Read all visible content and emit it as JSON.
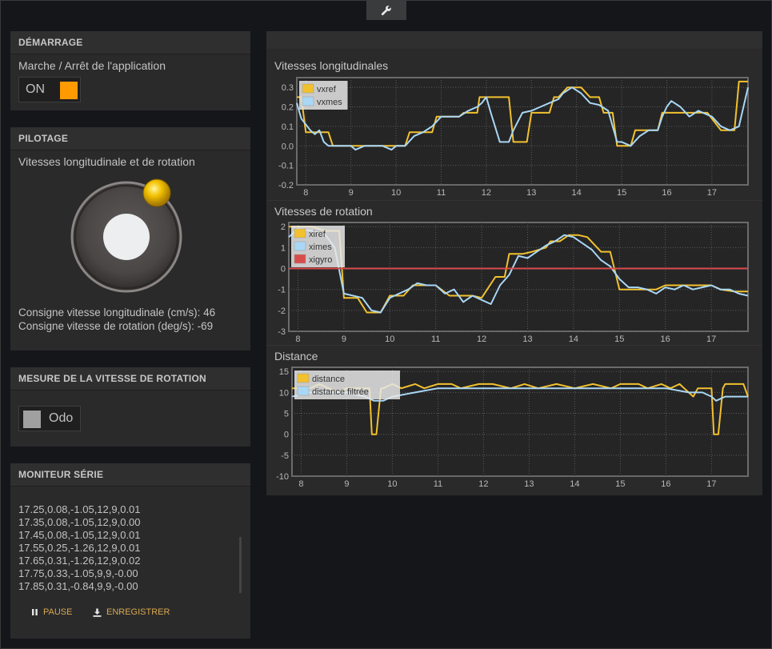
{
  "toolbar": {
    "settings_icon": "wrench-icon"
  },
  "demarrage": {
    "title": "DÉMARRAGE",
    "label": "Marche / Arrêt de l'application",
    "toggle_label": "ON",
    "toggle_color": "#ff9a00"
  },
  "pilotage": {
    "title": "PILOTAGE",
    "label": "Vitesses longitudinale et de rotation",
    "consigne_long": "Consigne vitesse longitudinale (cm/s): 46",
    "consigne_rot": "Consigne vitesse de rotation (deg/s): -69"
  },
  "mesure": {
    "title": "MESURE DE LA VITESSE DE ROTATION",
    "toggle_label": "Odo",
    "toggle_color": "#a0a0a0"
  },
  "moniteur": {
    "title": "MONITEUR SÉRIE",
    "lines": [
      "17.25,0.08,-1.05,12,9,0.01",
      "17.35,0.08,-1.05,12,9,0.00",
      "17.45,0.08,-1.05,12,9,0.01",
      "17.55,0.25,-1.26,12,9,0.01",
      "17.65,0.31,-1.26,12,9,0.02",
      "17.75,0.33,-1.05,9,9,-0.00",
      "17.85,0.31,-0.84,9,9,-0.00"
    ],
    "pause_label": "PAUSE",
    "save_label": "ENREGISTRER"
  },
  "chart_data": [
    {
      "type": "line",
      "title": "Vitesses longitudinales",
      "xlim": [
        7.8,
        17.8
      ],
      "ylim": [
        -0.2,
        0.35
      ],
      "xticks": [
        8,
        9,
        10,
        11,
        12,
        13,
        14,
        15,
        16,
        17
      ],
      "yticks": [
        -0.2,
        -0.1,
        0.0,
        0.1,
        0.2,
        0.3
      ],
      "ytick_labels": [
        "-0.2",
        "-0.1",
        "0.0",
        "0.1",
        "0.2",
        "0.3"
      ],
      "legend": "top-left",
      "series": [
        {
          "name": "vxref",
          "color": "#f2c12e",
          "x": [
            7.8,
            7.9,
            8.0,
            8.1,
            8.3,
            8.5,
            8.6,
            9.0,
            9.5,
            10.0,
            10.2,
            10.3,
            10.6,
            10.8,
            10.9,
            11.2,
            11.4,
            11.5,
            11.8,
            11.85,
            12.0,
            12.5,
            12.6,
            12.7,
            12.9,
            13.0,
            13.4,
            13.5,
            13.6,
            13.8,
            14.0,
            14.1,
            14.3,
            14.5,
            14.6,
            14.8,
            14.9,
            15.2,
            15.3,
            15.8,
            15.9,
            16.1,
            16.3,
            16.6,
            16.8,
            16.9,
            17.2,
            17.5,
            17.6,
            17.8
          ],
          "y": [
            0.25,
            0.25,
            0.07,
            0.07,
            0.07,
            0.07,
            0.0,
            0.0,
            0.0,
            0.0,
            0.0,
            0.07,
            0.07,
            0.07,
            0.15,
            0.15,
            0.15,
            0.17,
            0.17,
            0.25,
            0.25,
            0.25,
            0.02,
            0.02,
            0.02,
            0.17,
            0.17,
            0.25,
            0.25,
            0.3,
            0.3,
            0.3,
            0.25,
            0.25,
            0.17,
            0.17,
            0.0,
            0.0,
            0.08,
            0.08,
            0.17,
            0.17,
            0.17,
            0.17,
            0.17,
            0.17,
            0.08,
            0.08,
            0.33,
            0.33
          ]
        },
        {
          "name": "vxmes",
          "color": "#a9d7f5",
          "x": [
            7.8,
            7.9,
            8.1,
            8.2,
            8.3,
            8.4,
            8.5,
            8.7,
            9.0,
            9.1,
            9.3,
            9.5,
            9.7,
            9.9,
            10.0,
            10.2,
            10.4,
            10.6,
            10.8,
            11.0,
            11.2,
            11.4,
            11.6,
            11.8,
            11.9,
            12.0,
            12.1,
            12.3,
            12.5,
            12.6,
            12.8,
            13.0,
            13.2,
            13.4,
            13.6,
            13.7,
            13.9,
            14.1,
            14.3,
            14.5,
            14.7,
            14.9,
            15.0,
            15.2,
            15.4,
            15.6,
            15.8,
            15.9,
            16.0,
            16.1,
            16.3,
            16.5,
            16.7,
            16.9,
            17.0,
            17.2,
            17.4,
            17.6,
            17.8
          ],
          "y": [
            0.22,
            0.14,
            0.08,
            0.06,
            0.08,
            0.02,
            0.0,
            0.0,
            0.0,
            -0.02,
            0.0,
            0.0,
            0.0,
            -0.02,
            0.0,
            0.0,
            0.05,
            0.07,
            0.1,
            0.15,
            0.15,
            0.15,
            0.18,
            0.2,
            0.22,
            0.25,
            0.17,
            0.02,
            0.02,
            0.08,
            0.17,
            0.18,
            0.2,
            0.22,
            0.24,
            0.27,
            0.3,
            0.27,
            0.22,
            0.21,
            0.18,
            0.02,
            0.02,
            0.0,
            0.05,
            0.08,
            0.08,
            0.15,
            0.2,
            0.23,
            0.2,
            0.15,
            0.18,
            0.16,
            0.15,
            0.1,
            0.08,
            0.1,
            0.3
          ]
        }
      ]
    },
    {
      "type": "line",
      "title": "Vitesses de rotation",
      "xlim": [
        7.8,
        17.8
      ],
      "ylim": [
        -3,
        2.2
      ],
      "xticks": [
        8,
        9,
        10,
        11,
        12,
        13,
        14,
        15,
        16,
        17
      ],
      "yticks": [
        -3,
        -2,
        -1,
        0,
        1,
        2
      ],
      "ytick_labels": [
        "-3",
        "-2",
        "-1",
        "0",
        "1",
        "2"
      ],
      "legend": "top-left",
      "series": [
        {
          "name": "xiref",
          "color": "#f2c12e",
          "x": [
            7.8,
            8.3,
            8.6,
            8.9,
            9.0,
            9.2,
            9.3,
            9.5,
            9.8,
            10.0,
            10.3,
            10.5,
            10.8,
            11.0,
            11.3,
            11.5,
            11.8,
            12.0,
            12.3,
            12.5,
            12.6,
            12.9,
            13.1,
            13.4,
            13.5,
            13.7,
            13.9,
            14.1,
            14.3,
            14.6,
            14.8,
            15.0,
            15.2,
            15.5,
            15.8,
            16.0,
            16.3,
            16.6,
            16.8,
            17.0,
            17.2,
            17.5,
            17.8
          ],
          "y": [
            2.0,
            2.0,
            1.8,
            1.8,
            -1.4,
            -1.4,
            -1.4,
            -2.1,
            -2.1,
            -1.3,
            -1.3,
            -0.8,
            -0.8,
            -0.8,
            -1.3,
            -1.3,
            -1.3,
            -1.4,
            -0.4,
            -0.4,
            0.7,
            0.7,
            0.8,
            1.0,
            1.3,
            1.3,
            1.6,
            1.6,
            1.5,
            0.8,
            0.8,
            -1.0,
            -1.0,
            -1.0,
            -1.0,
            -0.8,
            -0.8,
            -0.8,
            -0.8,
            -0.8,
            -1.0,
            -1.1,
            -1.1
          ]
        },
        {
          "name": "ximes",
          "color": "#a9d7f5",
          "x": [
            7.8,
            8.0,
            8.3,
            8.6,
            8.8,
            9.0,
            9.2,
            9.4,
            9.6,
            9.8,
            10.0,
            10.2,
            10.4,
            10.6,
            10.8,
            11.0,
            11.2,
            11.4,
            11.6,
            11.8,
            12.0,
            12.2,
            12.4,
            12.6,
            12.8,
            13.0,
            13.2,
            13.4,
            13.6,
            13.8,
            14.0,
            14.2,
            14.4,
            14.6,
            14.8,
            15.0,
            15.2,
            15.4,
            15.6,
            15.8,
            16.0,
            16.2,
            16.4,
            16.6,
            16.8,
            17.0,
            17.2,
            17.4,
            17.6,
            17.8
          ],
          "y": [
            1.5,
            1.9,
            1.8,
            1.6,
            1.0,
            -1.2,
            -1.3,
            -1.4,
            -2.0,
            -2.1,
            -1.4,
            -1.2,
            -1.0,
            -0.7,
            -0.8,
            -0.8,
            -1.2,
            -1.0,
            -1.6,
            -1.3,
            -1.5,
            -1.7,
            -0.8,
            -0.3,
            0.6,
            0.5,
            0.8,
            1.1,
            1.3,
            1.6,
            1.5,
            1.2,
            0.9,
            0.4,
            0.1,
            -0.5,
            -0.9,
            -0.9,
            -1.0,
            -1.2,
            -0.9,
            -1.0,
            -0.8,
            -1.0,
            -0.9,
            -0.8,
            -1.0,
            -1.0,
            -1.2,
            -1.3
          ]
        },
        {
          "name": "xigyro",
          "color": "#d94c4c",
          "x": [
            7.8,
            17.8
          ],
          "y": [
            0.0,
            0.0
          ]
        }
      ]
    },
    {
      "type": "line",
      "title": "Distance",
      "xlim": [
        7.8,
        17.8
      ],
      "ylim": [
        -10,
        16
      ],
      "xticks": [
        8,
        9,
        10,
        11,
        12,
        13,
        14,
        15,
        16,
        17
      ],
      "yticks": [
        -10,
        -5,
        0,
        5,
        10,
        15
      ],
      "ytick_labels": [
        "-10",
        "-5",
        "0",
        "5",
        "10",
        "15"
      ],
      "legend": "top-left",
      "series": [
        {
          "name": "distance",
          "color": "#f2c12e",
          "x": [
            7.8,
            8.2,
            8.4,
            8.6,
            8.8,
            9.0,
            9.3,
            9.5,
            9.55,
            9.65,
            9.75,
            9.8,
            10.0,
            10.2,
            10.5,
            10.7,
            11.0,
            11.3,
            11.5,
            11.9,
            12.2,
            12.6,
            12.9,
            13.2,
            13.6,
            14.0,
            14.4,
            14.8,
            15.0,
            15.4,
            15.6,
            15.9,
            16.1,
            16.3,
            16.4,
            16.6,
            16.7,
            17.0,
            17.05,
            17.15,
            17.25,
            17.3,
            17.7,
            17.8
          ],
          "y": [
            11,
            11,
            12,
            11,
            10,
            11,
            11,
            11,
            0,
            0,
            11,
            11,
            12,
            11,
            12,
            11,
            12,
            12,
            11,
            12,
            12,
            11,
            12,
            11,
            12,
            11,
            12,
            11,
            12,
            12,
            11,
            12,
            11,
            12,
            11,
            9,
            11,
            11,
            0,
            0,
            11,
            12,
            12,
            9
          ]
        },
        {
          "name": "distance filtrée",
          "color": "#a9d7f5",
          "x": [
            7.8,
            8.2,
            8.6,
            9.0,
            9.4,
            9.6,
            9.8,
            10.0,
            10.5,
            11.0,
            12.0,
            13.0,
            14.0,
            15.0,
            15.5,
            16.0,
            16.5,
            16.8,
            17.0,
            17.1,
            17.3,
            17.8
          ],
          "y": [
            9,
            10,
            10,
            10,
            9,
            8,
            8,
            9,
            10,
            11,
            11,
            11,
            11,
            11,
            11,
            11,
            10,
            10,
            9,
            8,
            9,
            9
          ]
        }
      ]
    }
  ]
}
